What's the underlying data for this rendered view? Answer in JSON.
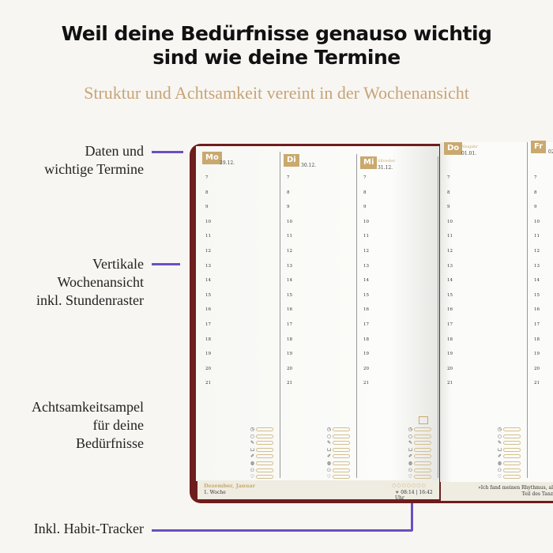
{
  "headline": {
    "line1": "Weil deine Bedürfnisse genauso wichtig",
    "line2": "sind wie deine Termine"
  },
  "subtitle": "Struktur und Achtsamkeit vereint in der Wochenansicht",
  "callouts": [
    {
      "line1": "Daten und",
      "line2": "wichtige Termine"
    },
    {
      "line1": "Vertikale",
      "line2": "Wochenansicht",
      "line3": "inkl. Stundenraster"
    },
    {
      "line1": "Achtsamkeitsampel",
      "line2": "für deine",
      "line3": "Bedürfnisse"
    },
    {
      "line1": "Inkl. Habit-Tracker"
    }
  ],
  "accent": "#6a4fc4",
  "gold": "#c9a96e",
  "days": [
    {
      "tab": "Mo",
      "date": "29.12.",
      "holiday": ""
    },
    {
      "tab": "Di",
      "date": "30.12.",
      "holiday": ""
    },
    {
      "tab": "Mi",
      "date": "31.12.",
      "holiday": "Silvester"
    },
    {
      "tab": "Do",
      "date": "01.01.",
      "holiday": "Neujahr"
    },
    {
      "tab": "Fr",
      "date": "02.0",
      "holiday": ""
    }
  ],
  "hours": [
    "7",
    "8",
    "9",
    "10",
    "11",
    "12",
    "13",
    "14",
    "15",
    "16",
    "17",
    "18",
    "19",
    "20",
    "21"
  ],
  "habit_icons": [
    "clock-icon",
    "circle-icon",
    "pen-icon",
    "cup-icon",
    "pill-icon",
    "food-icon",
    "people-icon",
    "heart-icon"
  ],
  "footer": {
    "month": "Dezember, Januar",
    "week": "1. Woche",
    "sun_times": "08:14 | 16:42 Uhr",
    "quote_line1": "»Ich fand meinen Rhythmus, al",
    "quote_line2": "Teil des Tanz"
  }
}
